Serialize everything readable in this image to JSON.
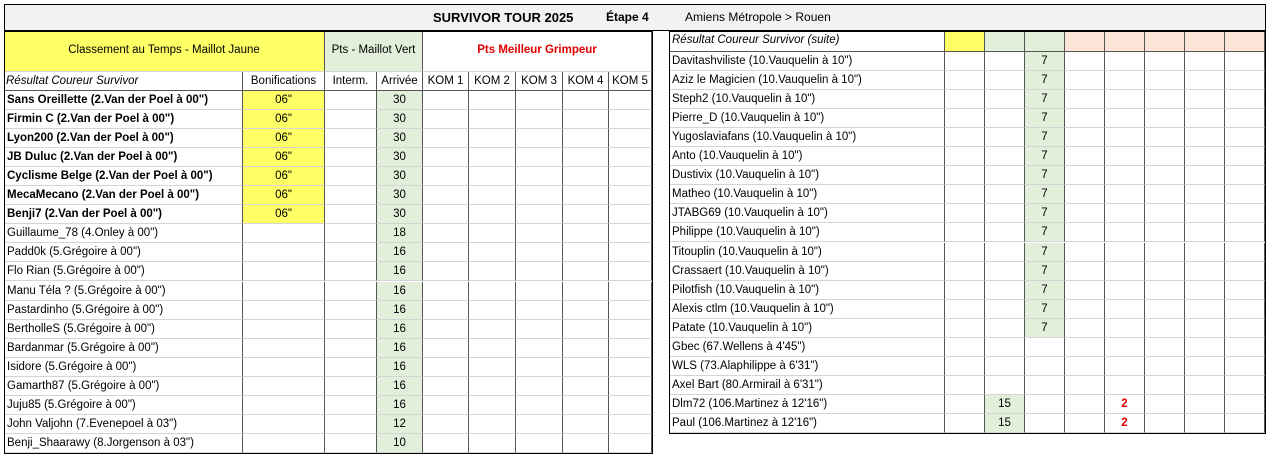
{
  "header": {
    "title": "SURVIVOR TOUR 2025",
    "stage": "Étape 4",
    "route": "Amiens Métropole > Rouen"
  },
  "left_table": {
    "group_headers": [
      "Classement au Temps - Maillot Jaune",
      "Pts - Maillot Vert",
      "Pts Meilleur Grimpeur"
    ],
    "columns": [
      "Résultat  Coureur Survivor",
      "Bonifications",
      "Interm.",
      "Arrivée",
      "KOM 1",
      "KOM 2",
      "KOM 3",
      "KOM 4",
      "KOM 5"
    ],
    "rows": [
      [
        "Sans Oreillette (2.Van der Poel à 00\")",
        "06\"",
        null,
        30,
        null,
        null,
        null,
        null,
        null
      ],
      [
        "Firmin C (2.Van der Poel à 00\")",
        "06\"",
        null,
        30,
        null,
        null,
        null,
        null,
        null
      ],
      [
        "Lyon200 (2.Van der Poel à 00\")",
        "06\"",
        null,
        30,
        null,
        null,
        null,
        null,
        null
      ],
      [
        "JB Duluc (2.Van der Poel à 00\")",
        "06\"",
        null,
        30,
        null,
        null,
        null,
        null,
        null
      ],
      [
        "Cyclisme Belge (2.Van der Poel à 00\")",
        "06\"",
        null,
        30,
        null,
        null,
        null,
        null,
        null
      ],
      [
        "MecaMecano (2.Van der Poel à 00\")",
        "06\"",
        null,
        30,
        null,
        null,
        null,
        null,
        null
      ],
      [
        "Benji7 (2.Van der Poel à 00\")",
        "06\"",
        null,
        30,
        null,
        null,
        null,
        null,
        null
      ],
      [
        "Guillaume_78 (4.Onley à 00\")",
        null,
        null,
        18,
        null,
        null,
        null,
        null,
        null
      ],
      [
        "Padd0k (5.Grégoire à 00\")",
        null,
        null,
        16,
        null,
        null,
        null,
        null,
        null
      ],
      [
        "Flo Rian (5.Grégoire à 00\")",
        null,
        null,
        16,
        null,
        null,
        null,
        null,
        null
      ],
      [
        "Manu Téla ? (5.Grégoire à 00\")",
        null,
        null,
        16,
        null,
        null,
        null,
        null,
        null
      ],
      [
        "Pastardinho (5.Grégoire à 00\")",
        null,
        null,
        16,
        null,
        null,
        null,
        null,
        null
      ],
      [
        "BerthollеS (5.Grégoire à 00\")",
        null,
        null,
        16,
        null,
        null,
        null,
        null,
        null
      ],
      [
        "Bardanmar (5.Grégoire à 00\")",
        null,
        null,
        16,
        null,
        null,
        null,
        null,
        null
      ],
      [
        "Isidore (5.Grégoire à 00\")",
        null,
        null,
        16,
        null,
        null,
        null,
        null,
        null
      ],
      [
        "Gamarth87 (5.Grégoire à 00\")",
        null,
        null,
        16,
        null,
        null,
        null,
        null,
        null
      ],
      [
        "Juju85 (5.Grégoire à 00\")",
        null,
        null,
        16,
        null,
        null,
        null,
        null,
        null
      ],
      [
        "John Valjohn (7.Evenepoel à 03\")",
        null,
        null,
        12,
        null,
        null,
        null,
        null,
        null
      ],
      [
        "Benji_Shaarawy (8.Jorgenson à 03\")",
        null,
        null,
        10,
        null,
        null,
        null,
        null,
        null
      ]
    ]
  },
  "right_table": {
    "header": "Résultat  Coureur Survivor (suite)",
    "rows": [
      [
        "Davitashviliste (10.Vauquelin à 10\")",
        null,
        null,
        7,
        null,
        null,
        null,
        null,
        null
      ],
      [
        "Aziz le Magicien (10.Vauquelin à 10\")",
        null,
        null,
        7,
        null,
        null,
        null,
        null,
        null
      ],
      [
        "Steph2 (10.Vauquelin à 10\")",
        null,
        null,
        7,
        null,
        null,
        null,
        null,
        null
      ],
      [
        "Pierre_D (10.Vauquelin à 10\")",
        null,
        null,
        7,
        null,
        null,
        null,
        null,
        null
      ],
      [
        "Yugoslaviafans (10.Vauquelin à 10\")",
        null,
        null,
        7,
        null,
        null,
        null,
        null,
        null
      ],
      [
        "Anto (10.Vauquelin à 10\")",
        null,
        null,
        7,
        null,
        null,
        null,
        null,
        null
      ],
      [
        "Dustivix (10.Vauquelin à 10\")",
        null,
        null,
        7,
        null,
        null,
        null,
        null,
        null
      ],
      [
        "Matheo (10.Vauquelin à 10\")",
        null,
        null,
        7,
        null,
        null,
        null,
        null,
        null
      ],
      [
        "JTABG69 (10.Vauquelin à 10\")",
        null,
        null,
        7,
        null,
        null,
        null,
        null,
        null
      ],
      [
        "Philippe (10.Vauquelin à 10\")",
        null,
        null,
        7,
        null,
        null,
        null,
        null,
        null
      ],
      [
        "Titouplin (10.Vauquelin à 10\")",
        null,
        null,
        7,
        null,
        null,
        null,
        null,
        null
      ],
      [
        "Crassaert (10.Vauquelin à 10\")",
        null,
        null,
        7,
        null,
        null,
        null,
        null,
        null
      ],
      [
        "Pilotfish (10.Vauquelin à 10\")",
        null,
        null,
        7,
        null,
        null,
        null,
        null,
        null
      ],
      [
        "Alexis ctlm (10.Vauquelin à 10\")",
        null,
        null,
        7,
        null,
        null,
        null,
        null,
        null
      ],
      [
        "Patate (10.Vauquelin à 10\")",
        null,
        null,
        7,
        null,
        null,
        null,
        null,
        null
      ],
      [
        "Gbec (67.Wellens à 4'45\")",
        null,
        null,
        null,
        null,
        null,
        null,
        null,
        null
      ],
      [
        "WLS (73.Alaphilippe à 6'31\")",
        null,
        null,
        null,
        null,
        null,
        null,
        null,
        null
      ],
      [
        "Axel Bart (80.Armirail à 6'31\")",
        null,
        null,
        null,
        null,
        null,
        null,
        null,
        null
      ],
      [
        "Dlm72 (106.Martinez à 12'16\")",
        null,
        15,
        null,
        null,
        2,
        null,
        null,
        null
      ],
      [
        "Paul (106.Martinez à 12'16\")",
        null,
        15,
        null,
        null,
        2,
        null,
        null,
        null
      ]
    ]
  }
}
